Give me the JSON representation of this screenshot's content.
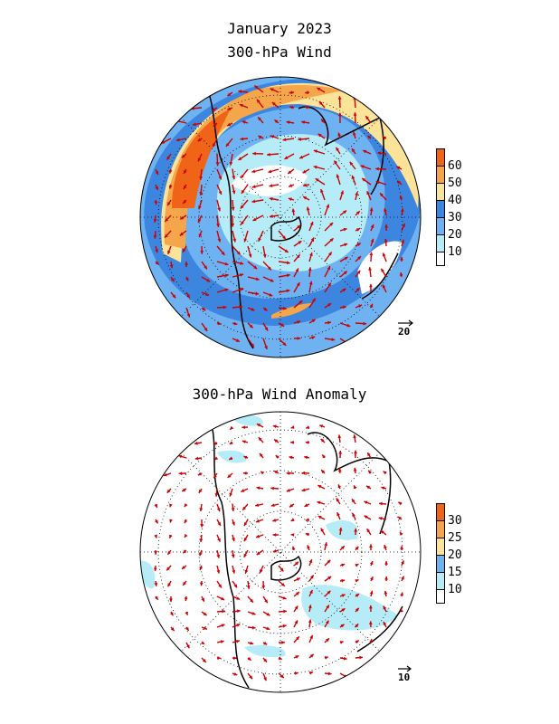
{
  "titles": {
    "month": "January 2023",
    "top": "300-hPa Wind",
    "bottom": "300-hPa Wind Anomaly"
  },
  "top_map": {
    "colorbar_ticks": [
      "60",
      "50",
      "40",
      "30",
      "20",
      "10"
    ],
    "colorbar_colors": [
      "#f06418",
      "#f5a64a",
      "#fbe39a",
      "#3d86e0",
      "#6fb2f2",
      "#b6ecf8",
      "#ffffff"
    ],
    "reference_vector": "20",
    "vector_color": "#cc0000"
  },
  "bottom_map": {
    "colorbar_ticks": [
      "30",
      "25",
      "20",
      "15",
      "10"
    ],
    "colorbar_colors": [
      "#f06418",
      "#f5a64a",
      "#fbe39a",
      "#6fb2f2",
      "#b6ecf8",
      "#ffffff"
    ],
    "reference_vector": "10",
    "vector_color": "#cc0000"
  }
}
